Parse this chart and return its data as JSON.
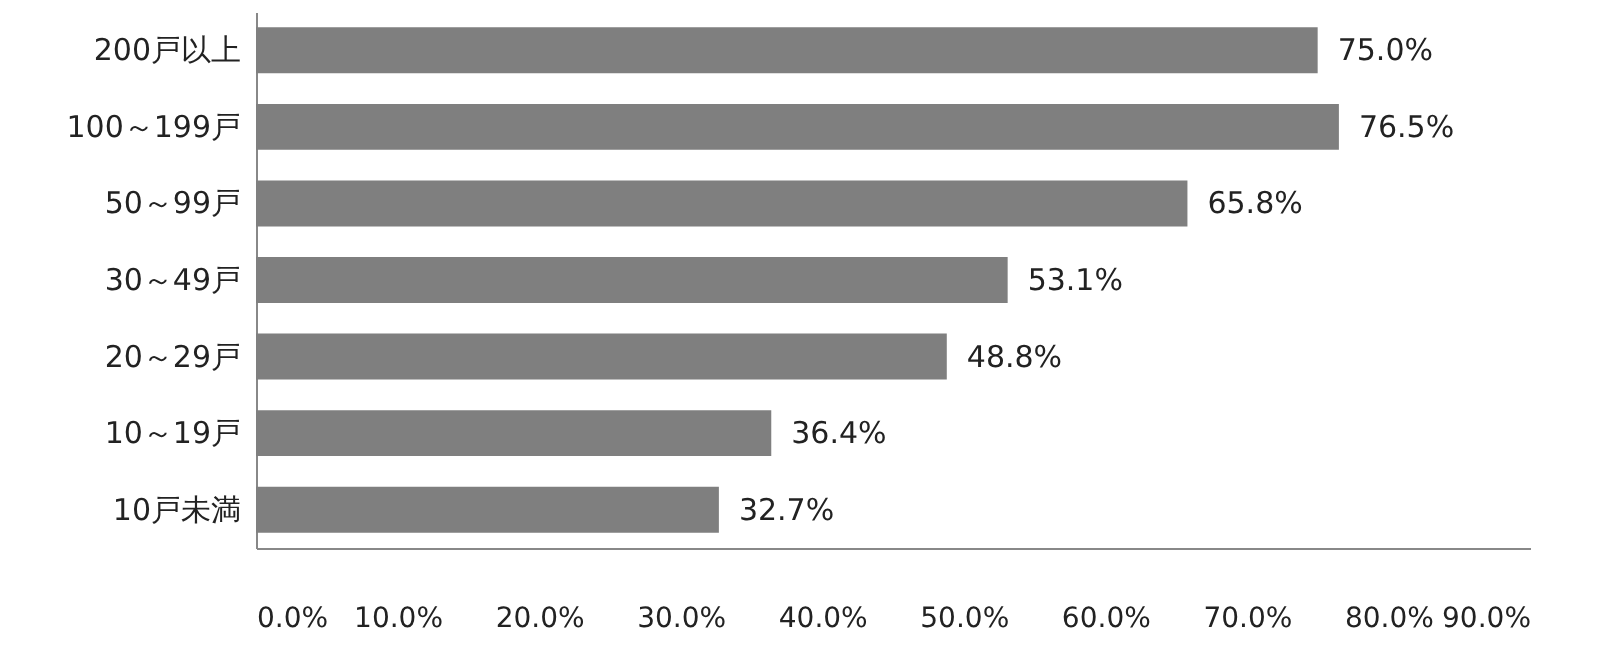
{
  "chart_data": {
    "type": "bar",
    "orientation": "horizontal",
    "categories": [
      "200戸以上",
      "100～199戸",
      "50～99戸",
      "30～49戸",
      "20～29戸",
      "10～19戸",
      "10戸未満"
    ],
    "values": [
      75.0,
      76.5,
      65.8,
      53.1,
      48.8,
      36.4,
      32.7
    ],
    "value_labels": [
      "75.0%",
      "76.5%",
      "65.8%",
      "53.1%",
      "48.8%",
      "36.4%",
      "32.7%"
    ],
    "color": "#7f7f7f",
    "xlim": [
      0,
      90
    ],
    "xticks": [
      {
        "value": 0,
        "label": "0.0%"
      },
      {
        "value": 10,
        "label": "10.0%"
      },
      {
        "value": 20,
        "label": "20.0%"
      },
      {
        "value": 30,
        "label": "30.0%"
      },
      {
        "value": 40,
        "label": "40.0%"
      },
      {
        "value": 50,
        "label": "50.0%"
      },
      {
        "value": 60,
        "label": "60.0%"
      },
      {
        "value": 70,
        "label": "70.0%"
      },
      {
        "value": 80,
        "label": "80.0%"
      },
      {
        "value": 90,
        "label": "90.0%"
      }
    ],
    "grid": false,
    "legend": false
  }
}
